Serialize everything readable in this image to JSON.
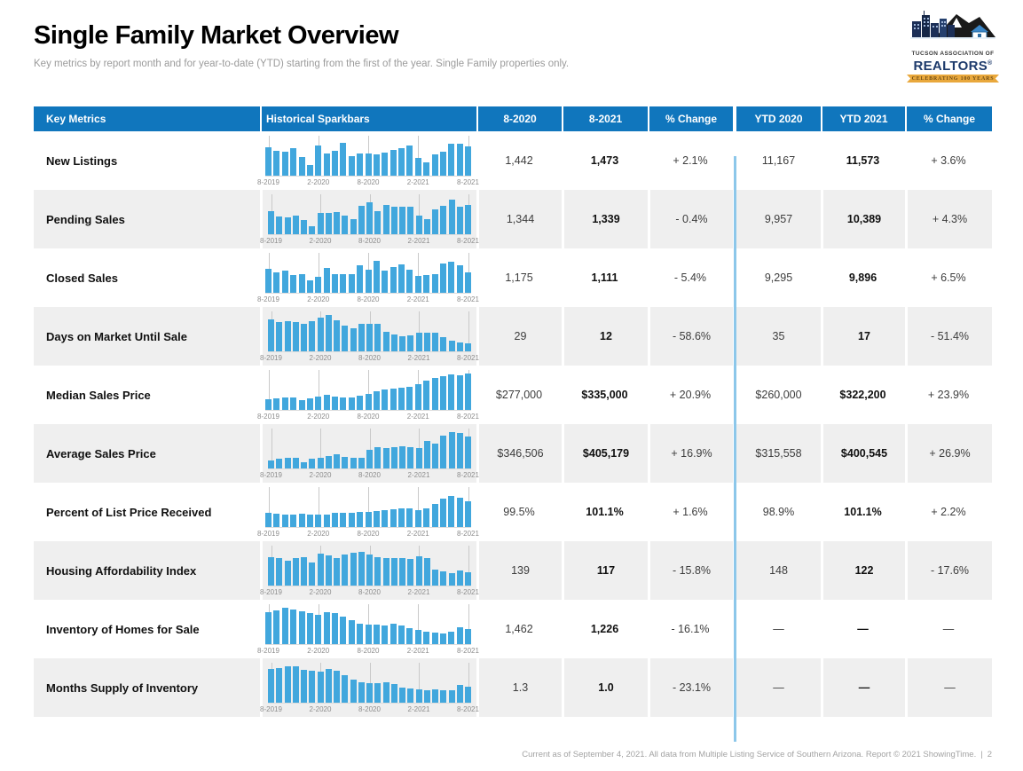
{
  "page": {
    "title": "Single Family Market Overview",
    "subtitle": "Key metrics by report month and for year-to-date (YTD) starting from the first of the year. Single Family properties only.",
    "footer": "Current as of September 4, 2021. All data from Multiple Listing Service of Southern Arizona. Report © 2021 ShowingTime.",
    "footer_separator": "|",
    "page_number": "2"
  },
  "logo": {
    "org_line1": "TUCSON ASSOCIATION OF",
    "org_line2": "REALTORS",
    "org_reg": "®",
    "banner": "CELEBRATING 100 YEARS"
  },
  "colors": {
    "header_blue": "#1076BD",
    "bar_blue": "#41A7DD",
    "divider_blue": "#8CC7EA",
    "alt_row_gray": "#EFEFEF"
  },
  "table": {
    "headers": [
      "Key Metrics",
      "Historical Sparkbars",
      "8-2020",
      "8-2021",
      "% Change",
      "YTD 2020",
      "YTD 2021",
      "% Change"
    ],
    "axis_labels": [
      "8-2019",
      "2-2020",
      "8-2020",
      "2-2021",
      "8-2021"
    ],
    "rows": [
      {
        "metric": "New Listings",
        "m2020": "1,442",
        "m2021": "1,473",
        "m_change": "+ 2.1%",
        "ytd2020": "11,167",
        "ytd2021": "11,573",
        "ytd_change": "+ 3.6%",
        "spark": [
          78,
          68,
          66,
          74,
          52,
          28,
          82,
          60,
          68,
          90,
          54,
          60,
          60,
          58,
          63,
          70,
          76,
          82,
          48,
          36,
          58,
          66,
          88,
          86,
          80
        ]
      },
      {
        "metric": "Pending Sales",
        "m2020": "1,344",
        "m2021": "1,339",
        "m_change": "- 0.4%",
        "ytd2020": "9,957",
        "ytd2021": "10,389",
        "ytd_change": "+ 4.3%",
        "spark": [
          62,
          48,
          46,
          50,
          38,
          22,
          58,
          58,
          60,
          52,
          42,
          78,
          88,
          64,
          80,
          74,
          74,
          76,
          52,
          42,
          68,
          78,
          95,
          74,
          80
        ]
      },
      {
        "metric": "Closed Sales",
        "m2020": "1,175",
        "m2021": "1,111",
        "m_change": "- 5.4%",
        "ytd2020": "9,295",
        "ytd2021": "9,896",
        "ytd_change": "+ 6.5%",
        "spark": [
          66,
          55,
          60,
          48,
          52,
          34,
          44,
          68,
          52,
          52,
          52,
          74,
          63,
          88,
          60,
          70,
          78,
          62,
          45,
          48,
          52,
          80,
          84,
          76,
          56
        ]
      },
      {
        "metric": "Days on Market Until Sale",
        "m2020": "29",
        "m2021": "12",
        "m_change": "- 58.6%",
        "ytd2020": "35",
        "ytd2021": "17",
        "ytd_change": "- 51.4%",
        "spark": [
          88,
          80,
          82,
          80,
          76,
          82,
          92,
          100,
          84,
          70,
          64,
          76,
          74,
          74,
          54,
          46,
          40,
          44,
          50,
          52,
          50,
          38,
          28,
          24,
          22
        ]
      },
      {
        "metric": "Median Sales Price",
        "m2020": "$277,000",
        "m2021": "$335,000",
        "m_change": "+ 20.9%",
        "ytd2020": "$260,000",
        "ytd2021": "$322,200",
        "ytd_change": "+ 23.9%",
        "spark": [
          30,
          32,
          34,
          35,
          26,
          32,
          36,
          40,
          36,
          34,
          35,
          38,
          44,
          50,
          55,
          57,
          60,
          64,
          70,
          80,
          88,
          92,
          96,
          93,
          100
        ]
      },
      {
        "metric": "Average Sales Price",
        "m2020": "$346,506",
        "m2021": "$405,179",
        "m_change": "+ 16.9%",
        "ytd2020": "$315,558",
        "ytd2021": "$400,545",
        "ytd_change": "+ 26.9%",
        "spark": [
          22,
          26,
          28,
          28,
          16,
          26,
          30,
          34,
          38,
          32,
          28,
          30,
          50,
          58,
          56,
          58,
          60,
          58,
          56,
          75,
          68,
          90,
          100,
          96,
          88
        ]
      },
      {
        "metric": "Percent of List Price Received",
        "m2020": "99.5%",
        "m2021": "101.1%",
        "m_change": "+ 1.6%",
        "ytd2020": "98.9%",
        "ytd2021": "101.1%",
        "ytd_change": "+ 2.2%",
        "spark": [
          38,
          36,
          34,
          35,
          36,
          35,
          33,
          34,
          38,
          38,
          39,
          40,
          42,
          44,
          46,
          48,
          50,
          50,
          47,
          52,
          62,
          78,
          85,
          80,
          70
        ]
      },
      {
        "metric": "Housing Affordability Index",
        "m2020": "139",
        "m2021": "117",
        "m_change": "- 15.8%",
        "ytd2020": "148",
        "ytd2021": "122",
        "ytd_change": "- 17.6%",
        "spark": [
          78,
          74,
          68,
          74,
          78,
          64,
          88,
          82,
          74,
          84,
          90,
          92,
          84,
          78,
          74,
          74,
          74,
          72,
          80,
          76,
          44,
          38,
          34,
          42,
          36
        ]
      },
      {
        "metric": "Inventory of Homes for Sale",
        "m2020": "1,462",
        "m2021": "1,226",
        "m_change": "- 16.1%",
        "ytd2020": "—",
        "ytd2021": "—",
        "ytd_change": "—",
        "spark": [
          88,
          92,
          98,
          94,
          90,
          84,
          80,
          88,
          84,
          76,
          66,
          56,
          54,
          54,
          52,
          56,
          50,
          44,
          38,
          34,
          32,
          30,
          34,
          46,
          42
        ]
      },
      {
        "metric": "Months Supply of Inventory",
        "m2020": "1.3",
        "m2021": "1.0",
        "m_change": "- 23.1%",
        "ytd2020": "—",
        "ytd2021": "—",
        "ytd_change": "—",
        "spark": [
          92,
          95,
          100,
          98,
          90,
          86,
          84,
          92,
          88,
          76,
          62,
          56,
          54,
          54,
          56,
          50,
          42,
          38,
          36,
          34,
          36,
          34,
          35,
          48,
          44
        ]
      }
    ]
  }
}
